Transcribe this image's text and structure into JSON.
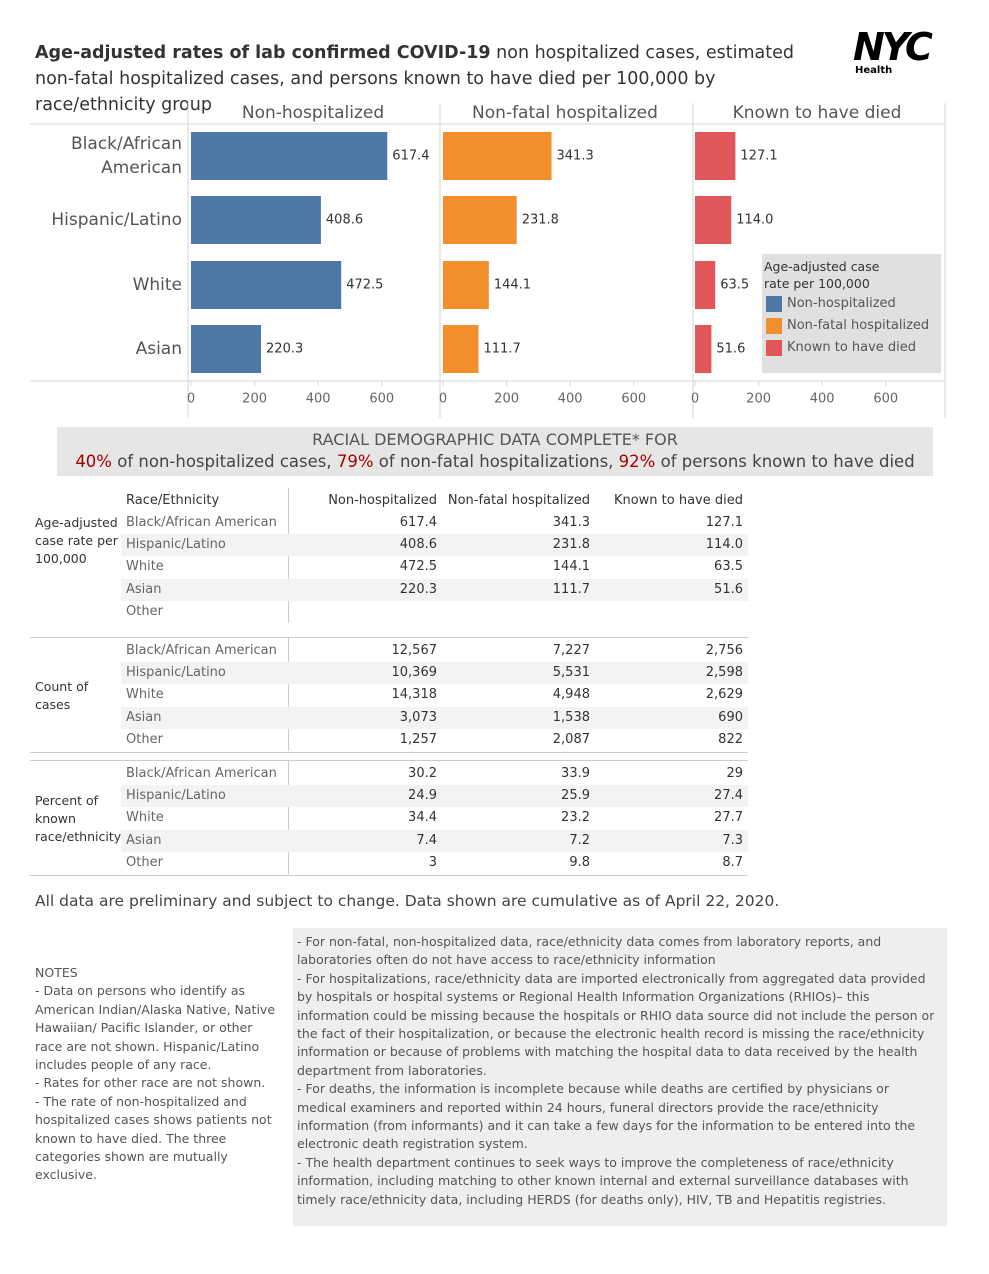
{
  "header": {
    "title_bold": "Age-adjusted rates of lab confirmed COVID-19",
    "title_regular": "non hospitalized cases, estimated non-fatal hospitalized cases, and persons known to have died per 100,000 by race/ethnicity group",
    "logo": "NYC",
    "logo_sub": "Health"
  },
  "chart_data": {
    "type": "bar",
    "orientation": "horizontal",
    "layout": "panels",
    "categories": [
      "Black/African American",
      "Hispanic/Latino",
      "White",
      "Asian"
    ],
    "series": [
      {
        "name": "Non-hospitalized",
        "color": "#4e79a7",
        "values": [
          617.4,
          408.6,
          472.5,
          220.3
        ],
        "value_labels": [
          "617.4",
          "408.6",
          "472.5",
          "220.3"
        ]
      },
      {
        "name": "Non-fatal hospitalized",
        "color": "#f28e2b",
        "values": [
          341.3,
          231.8,
          144.1,
          111.7
        ],
        "value_labels": [
          "341.3",
          "231.8",
          "144.1",
          "111.7"
        ]
      },
      {
        "name": "Known to have died",
        "color": "#e15759",
        "values": [
          127.1,
          114.0,
          63.5,
          51.6
        ],
        "value_labels": [
          "127.1",
          "114.0",
          "63.5",
          "51.6"
        ]
      }
    ],
    "xlim": [
      0,
      780
    ],
    "xticks": [
      0,
      200,
      400,
      600
    ],
    "legend_title": "Age-adjusted case rate per 100,000",
    "legend": "right"
  },
  "banner": {
    "heading": "RACIAL DEMOGRAPHIC DATA COMPLETE* FOR",
    "parts": [
      {
        "pct": "40%",
        "text": " of non-hospitalized cases, "
      },
      {
        "pct": "79%",
        "text": " of non-fatal hospitalizations, "
      },
      {
        "pct": "92%",
        "text": " of persons known to have died"
      }
    ]
  },
  "table": {
    "columns": [
      "Race/Ethnicity",
      "Non-hospitalized",
      "Non-fatal hospitalized",
      "Known to have died"
    ],
    "sections": [
      {
        "label": "Age-adjusted case rate per 100,000",
        "rows": [
          [
            "Black/African American",
            "617.4",
            "341.3",
            "127.1"
          ],
          [
            "Hispanic/Latino",
            "408.6",
            "231.8",
            "114.0"
          ],
          [
            "White",
            "472.5",
            "144.1",
            "63.5"
          ],
          [
            "Asian",
            "220.3",
            "111.7",
            "51.6"
          ],
          [
            "Other",
            null,
            null,
            null
          ]
        ]
      },
      {
        "label": "Count of cases",
        "rows": [
          [
            "Black/African American",
            "12,567",
            "7,227",
            "2,756"
          ],
          [
            "Hispanic/Latino",
            "10,369",
            "5,531",
            "2,598"
          ],
          [
            "White",
            "14,318",
            "4,948",
            "2,629"
          ],
          [
            "Asian",
            "3,073",
            "1,538",
            "690"
          ],
          [
            "Other",
            "1,257",
            "2,087",
            "822"
          ]
        ]
      },
      {
        "label": "Percent of known race/ethnicity",
        "rows": [
          [
            "Black/African American",
            "30.2",
            "33.9",
            "29"
          ],
          [
            "Hispanic/Latino",
            "24.9",
            "25.9",
            "27.4"
          ],
          [
            "White",
            "34.4",
            "23.2",
            "27.7"
          ],
          [
            "Asian",
            "7.4",
            "7.2",
            "7.3"
          ],
          [
            "Other",
            "3",
            "9.8",
            "8.7"
          ]
        ]
      }
    ]
  },
  "footer": "All data are preliminary and subject to change. Data shown are cumulative as of April 22, 2020.",
  "notes": {
    "title": "NOTES",
    "items": [
      "- Data on persons who identify as American Indian/Alaska Native, Native Hawaiian/ Pacific Islander, or other race are not shown. Hispanic/Latino includes people of any race.",
      "- Rates for other race are not shown.",
      "- The rate of non-hospitalized and hospitalized cases shows patients not known to have died. The three categories shown are mutually exclusive."
    ]
  },
  "details": {
    "items": [
      "- For non-fatal, non-hospitalized data, race/ethnicity data comes from laboratory reports, and laboratories often do not have access to race/ethnicity information",
      "- For hospitalizations, race/ethnicity data are imported electronically from aggregated data provided by hospitals or hospital systems or Regional Health Information Organizations (RHIOs)– this information could be missing because the hospitals or RHIO data source did not include the person or the fact of their hospitalization, or because the electronic health record is missing the race/ethnicity information or because of problems with matching the hospital data to data received by the health department from laboratories.",
      "- For deaths, the information is incomplete because while deaths are certified by physicians or medical examiners and reported within 24 hours, funeral directors provide the race/ethnicity information (from informants) and it can take a few days for the information to be entered into the electronic death registration system.",
      "- The health department continues to seek ways to improve the completeness of race/ethnicity information, including matching to other known internal and external surveillance databases with timely race/ethnicity data, including HERDS (for deaths only), HIV, TB and Hepatitis registries."
    ]
  }
}
